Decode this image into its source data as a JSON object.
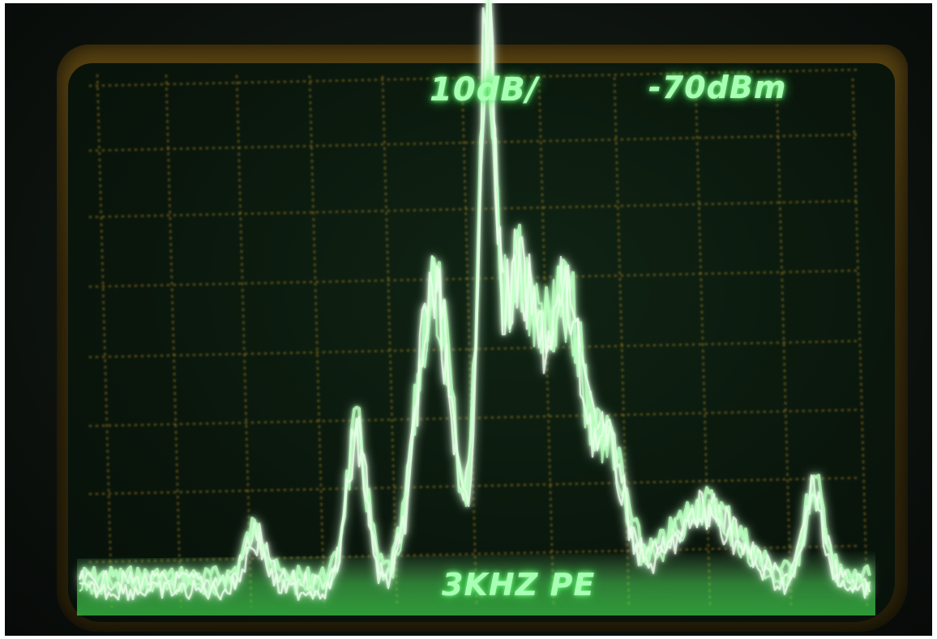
{
  "screen": {
    "scale_readout": "10dB/",
    "reference_level_readout": "-70dBm",
    "bandwidth_readout": "3KHZ PE",
    "colors": {
      "trace": "#dfffe2",
      "trace_glow": "#4cff5c",
      "graticule": "#b08a2a",
      "bezel": "#4a3a10"
    }
  }
}
